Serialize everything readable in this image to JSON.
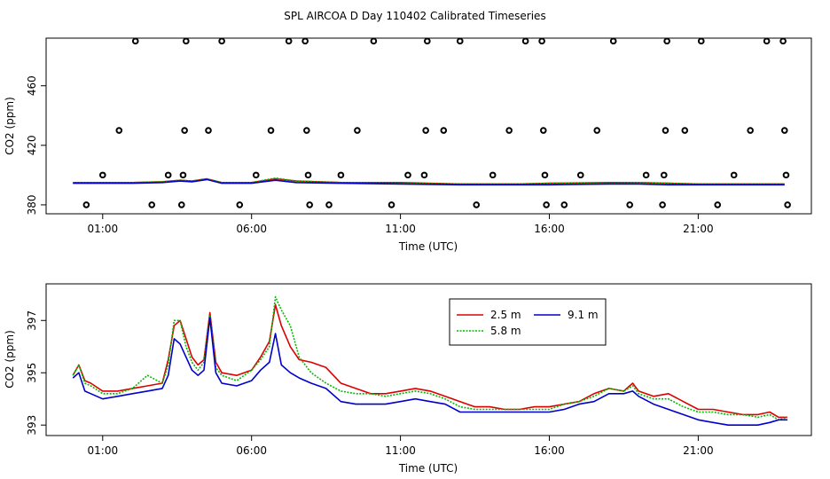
{
  "page": {
    "title": "SPL AIRCOA D  Day 110402  Calibrated Timeseries"
  },
  "colors": {
    "2.5 m": "#dd0000",
    "5.8 m": "#00bb00",
    "9.1 m": "#0000cc",
    "points": "#000000"
  },
  "chart_data": [
    {
      "type": "line",
      "name": "top",
      "title": "",
      "xlabel": "Time (UTC)",
      "ylabel": "CO2 (ppm)",
      "xlim": [
        -0.9,
        24.8
      ],
      "ylim": [
        374,
        492
      ],
      "xticks": [
        {
          "value": 1,
          "label": "01:00"
        },
        {
          "value": 6,
          "label": "06:00"
        },
        {
          "value": 11,
          "label": "11:00"
        },
        {
          "value": 16,
          "label": "16:00"
        },
        {
          "value": 21,
          "label": "21:00"
        }
      ],
      "yticks": [
        {
          "value": 380,
          "label": "380"
        },
        {
          "value": 420,
          "label": "420"
        },
        {
          "value": 460,
          "label": "460"
        }
      ],
      "calibration_points": [
        [
          0.45,
          380
        ],
        [
          1.0,
          400
        ],
        [
          1.55,
          430
        ],
        [
          2.1,
          490
        ],
        [
          2.65,
          380
        ],
        [
          3.2,
          400
        ],
        [
          3.65,
          380
        ],
        [
          3.7,
          400
        ],
        [
          3.75,
          430
        ],
        [
          3.8,
          490
        ],
        [
          4.55,
          430
        ],
        [
          5.0,
          490
        ],
        [
          5.6,
          380
        ],
        [
          6.15,
          400
        ],
        [
          6.65,
          430
        ],
        [
          7.25,
          490
        ],
        [
          7.8,
          490
        ],
        [
          7.85,
          430
        ],
        [
          7.9,
          400
        ],
        [
          7.95,
          380
        ],
        [
          8.6,
          380
        ],
        [
          9.0,
          400
        ],
        [
          9.55,
          430
        ],
        [
          10.1,
          490
        ],
        [
          10.7,
          380
        ],
        [
          11.25,
          400
        ],
        [
          11.8,
          400
        ],
        [
          11.85,
          430
        ],
        [
          11.9,
          490
        ],
        [
          12.45,
          430
        ],
        [
          13.0,
          490
        ],
        [
          13.55,
          380
        ],
        [
          14.1,
          400
        ],
        [
          14.65,
          430
        ],
        [
          15.2,
          490
        ],
        [
          15.75,
          490
        ],
        [
          15.8,
          430
        ],
        [
          15.85,
          400
        ],
        [
          15.9,
          380
        ],
        [
          16.5,
          380
        ],
        [
          17.05,
          400
        ],
        [
          17.6,
          430
        ],
        [
          18.15,
          490
        ],
        [
          18.7,
          380
        ],
        [
          19.25,
          400
        ],
        [
          19.8,
          380
        ],
        [
          19.85,
          400
        ],
        [
          19.9,
          430
        ],
        [
          19.95,
          490
        ],
        [
          20.55,
          430
        ],
        [
          21.1,
          490
        ],
        [
          21.65,
          380
        ],
        [
          22.2,
          400
        ],
        [
          22.75,
          430
        ],
        [
          23.3,
          490
        ],
        [
          23.85,
          490
        ],
        [
          23.9,
          430
        ],
        [
          23.95,
          400
        ],
        [
          24.0,
          380
        ]
      ],
      "series": [
        {
          "name": "2.5 m",
          "x": [
            0,
            1,
            2,
            3,
            3.6,
            4,
            4.5,
            5,
            6,
            6.8,
            7.5,
            9,
            11,
            13,
            15,
            16,
            18,
            19,
            20,
            21,
            22,
            23,
            23.9
          ],
          "y": [
            395,
            395,
            395,
            395.5,
            396.5,
            396,
            397.5,
            395,
            395,
            397.5,
            396,
            395,
            395,
            394,
            394,
            394.5,
            395,
            395,
            394.5,
            394,
            394,
            394,
            394
          ]
        },
        {
          "name": "5.8 m",
          "x": [
            0,
            1,
            2,
            3,
            3.6,
            4,
            4.5,
            5,
            6,
            6.8,
            7.5,
            9,
            11,
            13,
            15,
            16,
            18,
            19,
            20,
            21,
            22,
            23,
            23.9
          ],
          "y": [
            395,
            395,
            395,
            395.5,
            396.5,
            396,
            397.5,
            395,
            395,
            398,
            396,
            395,
            394.5,
            394,
            394,
            394.5,
            394.5,
            395,
            394.5,
            394,
            394,
            394,
            394
          ]
        },
        {
          "name": "9.1 m",
          "x": [
            0,
            1,
            2,
            3,
            3.6,
            4,
            4.5,
            5,
            6,
            6.8,
            7.5,
            9,
            11,
            13,
            15,
            16,
            18,
            19,
            20,
            21,
            22,
            23,
            23.9
          ],
          "y": [
            394.5,
            394.5,
            394.5,
            395,
            396,
            395.5,
            397,
            394.5,
            394.5,
            396.5,
            395,
            394.5,
            394,
            393.5,
            393.5,
            393.5,
            394,
            394,
            393.5,
            393.5,
            393.5,
            393.5,
            393.5
          ]
        }
      ]
    },
    {
      "type": "line",
      "name": "bottom",
      "title": "",
      "xlabel": "Time (UTC)",
      "ylabel": "CO2 (ppm)",
      "xlim": [
        -0.9,
        24.8
      ],
      "ylim": [
        392.6,
        398.4
      ],
      "xticks": [
        {
          "value": 1,
          "label": "01:00"
        },
        {
          "value": 6,
          "label": "06:00"
        },
        {
          "value": 11,
          "label": "11:00"
        },
        {
          "value": 16,
          "label": "16:00"
        },
        {
          "value": 21,
          "label": "21:00"
        }
      ],
      "yticks": [
        {
          "value": 393,
          "label": "393"
        },
        {
          "value": 395,
          "label": "395"
        },
        {
          "value": 397,
          "label": "397"
        }
      ],
      "legend": {
        "position": "top-center",
        "entries": [
          "2.5 m",
          "5.8 m",
          "9.1 m"
        ]
      },
      "series": [
        {
          "name": "2.5 m",
          "x": [
            0,
            0.2,
            0.4,
            0.6,
            1.0,
            1.5,
            2.0,
            2.5,
            3.0,
            3.2,
            3.4,
            3.6,
            3.8,
            4.0,
            4.2,
            4.4,
            4.6,
            4.8,
            5.0,
            5.5,
            6.0,
            6.3,
            6.6,
            6.8,
            7.0,
            7.3,
            7.6,
            8.0,
            8.5,
            9.0,
            9.5,
            10.0,
            10.5,
            11.0,
            11.5,
            12.0,
            12.5,
            13.0,
            13.5,
            14.0,
            14.5,
            15.0,
            15.5,
            16.0,
            16.5,
            17.0,
            17.5,
            18.0,
            18.5,
            18.8,
            19.0,
            19.5,
            20.0,
            20.5,
            21.0,
            21.5,
            22.0,
            22.5,
            23.0,
            23.4,
            23.7,
            24.0
          ],
          "y": [
            394.9,
            395.3,
            394.7,
            394.6,
            394.3,
            394.3,
            394.4,
            394.5,
            394.6,
            395.5,
            396.8,
            397.0,
            396.3,
            395.6,
            395.3,
            395.5,
            397.3,
            395.4,
            395.0,
            394.9,
            395.1,
            395.6,
            396.2,
            397.6,
            396.8,
            396.0,
            395.5,
            395.4,
            395.2,
            394.6,
            394.4,
            394.2,
            394.2,
            394.3,
            394.4,
            394.3,
            394.1,
            393.9,
            393.7,
            393.7,
            393.6,
            393.6,
            393.7,
            393.7,
            393.8,
            393.9,
            394.2,
            394.4,
            394.3,
            394.6,
            394.3,
            394.1,
            394.2,
            393.9,
            393.6,
            393.6,
            393.5,
            393.4,
            393.4,
            393.5,
            393.3,
            393.3
          ]
        },
        {
          "name": "5.8 m",
          "x": [
            0,
            0.2,
            0.4,
            0.6,
            1.0,
            1.5,
            2.0,
            2.5,
            3.0,
            3.2,
            3.4,
            3.6,
            3.8,
            4.0,
            4.2,
            4.4,
            4.6,
            4.8,
            5.0,
            5.5,
            6.0,
            6.3,
            6.6,
            6.8,
            7.0,
            7.3,
            7.6,
            8.0,
            8.5,
            9.0,
            9.5,
            10.0,
            10.5,
            11.0,
            11.5,
            12.0,
            12.5,
            13.0,
            13.5,
            14.0,
            14.5,
            15.0,
            15.5,
            16.0,
            16.5,
            17.0,
            17.5,
            18.0,
            18.5,
            18.8,
            19.0,
            19.5,
            20.0,
            20.5,
            21.0,
            21.5,
            22.0,
            22.5,
            23.0,
            23.4,
            23.7,
            24.0
          ],
          "y": [
            394.9,
            395.3,
            394.6,
            394.5,
            394.2,
            394.2,
            394.4,
            394.9,
            394.6,
            395.3,
            397.0,
            397.0,
            396.0,
            395.4,
            395.1,
            395.4,
            397.2,
            395.2,
            394.9,
            394.7,
            395.1,
            395.5,
            396.0,
            397.9,
            397.4,
            396.8,
            395.6,
            395.0,
            394.6,
            394.3,
            394.2,
            394.2,
            394.1,
            394.2,
            394.3,
            394.2,
            394.0,
            393.7,
            393.6,
            393.6,
            393.6,
            393.6,
            393.6,
            393.6,
            393.8,
            393.9,
            394.1,
            394.4,
            394.3,
            394.5,
            394.2,
            394.0,
            394.0,
            393.7,
            393.5,
            393.5,
            393.4,
            393.4,
            393.3,
            393.4,
            393.2,
            393.3
          ]
        },
        {
          "name": "9.1 m",
          "x": [
            0,
            0.2,
            0.4,
            0.6,
            1.0,
            1.5,
            2.0,
            2.5,
            3.0,
            3.2,
            3.4,
            3.6,
            3.8,
            4.0,
            4.2,
            4.4,
            4.6,
            4.8,
            5.0,
            5.5,
            6.0,
            6.3,
            6.6,
            6.8,
            7.0,
            7.3,
            7.6,
            8.0,
            8.5,
            9.0,
            9.5,
            10.0,
            10.5,
            11.0,
            11.5,
            12.0,
            12.5,
            13.0,
            13.5,
            14.0,
            14.5,
            15.0,
            15.5,
            16.0,
            16.5,
            17.0,
            17.5,
            18.0,
            18.5,
            18.8,
            19.0,
            19.5,
            20.0,
            20.5,
            21.0,
            21.5,
            22.0,
            22.5,
            23.0,
            23.4,
            23.7,
            24.0
          ],
          "y": [
            394.8,
            395.0,
            394.3,
            394.2,
            394.0,
            394.1,
            394.2,
            394.3,
            394.4,
            394.9,
            396.3,
            396.1,
            395.6,
            395.1,
            394.9,
            395.1,
            397.1,
            395.0,
            394.6,
            394.5,
            394.7,
            395.1,
            395.4,
            396.5,
            395.3,
            395.0,
            394.8,
            394.6,
            394.4,
            393.9,
            393.8,
            393.8,
            393.8,
            393.9,
            394.0,
            393.9,
            393.8,
            393.5,
            393.5,
            393.5,
            393.5,
            393.5,
            393.5,
            393.5,
            393.6,
            393.8,
            393.9,
            394.2,
            394.2,
            394.3,
            394.1,
            393.8,
            393.6,
            393.4,
            393.2,
            393.1,
            393.0,
            393.0,
            393.0,
            393.1,
            393.2,
            393.2
          ]
        }
      ]
    }
  ]
}
